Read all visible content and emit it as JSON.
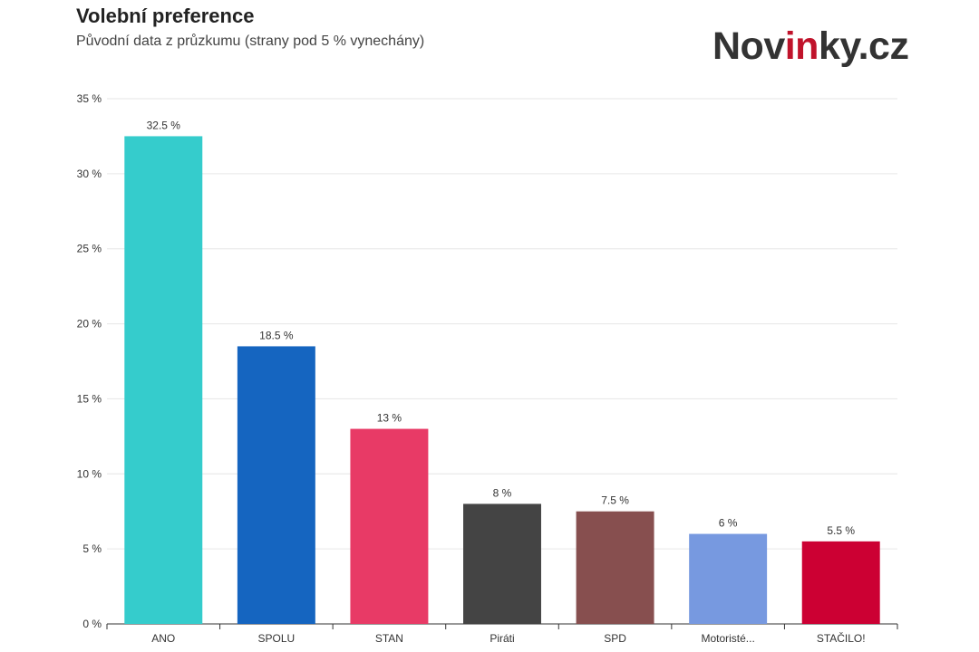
{
  "header": {
    "title": "Volební preference",
    "subtitle": "Původní data z průzkumu (strany pod 5 % vynechány)"
  },
  "logo": {
    "part1": "Nov",
    "part2": "in",
    "part3": "ky.cz"
  },
  "chart_data": {
    "type": "bar",
    "categories": [
      "ANO",
      "SPOLU",
      "STAN",
      "Piráti",
      "SPD",
      "Motoristé...",
      "STAČILO!"
    ],
    "values": [
      32.5,
      18.5,
      13,
      8,
      7.5,
      6,
      5.5
    ],
    "data_labels": [
      "32.5 %",
      "18.5 %",
      "13 %",
      "8 %",
      "7.5 %",
      "6 %",
      "5.5 %"
    ],
    "colors": [
      "#35cccc",
      "#1565c0",
      "#e83a66",
      "#444444",
      "#874f4f",
      "#7799e0",
      "#cc0033"
    ],
    "ylim": [
      0,
      35
    ],
    "yticks": [
      0,
      5,
      10,
      15,
      20,
      25,
      30,
      35
    ],
    "ytick_labels": [
      "0 %",
      "5 %",
      "10 %",
      "15 %",
      "20 %",
      "25 %",
      "30 %",
      "35 %"
    ],
    "grid": true,
    "legend": "none"
  }
}
